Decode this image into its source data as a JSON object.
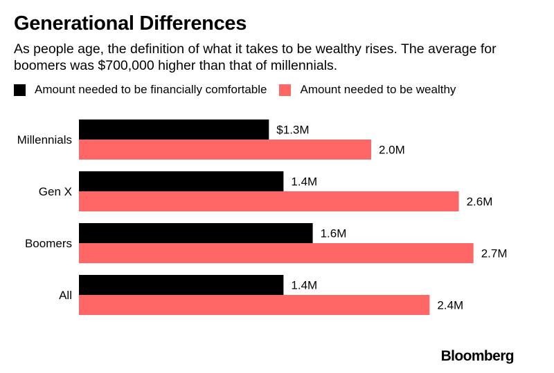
{
  "title": "Generational Differences",
  "subtitle": "As people age, the definition of what it takes to be wealthy rises. The average for boomers was $700,000 higher than that of millennials.",
  "brand": "Bloomberg",
  "colors": {
    "comfortable": "#000000",
    "wealthy": "#ff6666"
  },
  "chart_data": {
    "type": "bar",
    "orientation": "horizontal",
    "categories": [
      "Millennials",
      "Gen X",
      "Boomers",
      "All"
    ],
    "series": [
      {
        "name": "Amount needed to be financially comfortable",
        "values": [
          1.3,
          1.4,
          1.6,
          1.4
        ],
        "labels": [
          "$1.3M",
          "1.4M",
          "1.6M",
          "1.4M"
        ],
        "color": "#000000"
      },
      {
        "name": "Amount needed to be wealthy",
        "values": [
          2.0,
          2.6,
          2.7,
          2.4
        ],
        "labels": [
          "2.0M",
          "2.6M",
          "2.7M",
          "2.4M"
        ],
        "color": "#ff6666"
      }
    ],
    "legend": "top-left",
    "grid": false,
    "xlim": [
      0,
      2.7
    ],
    "unit": "millions of dollars"
  }
}
